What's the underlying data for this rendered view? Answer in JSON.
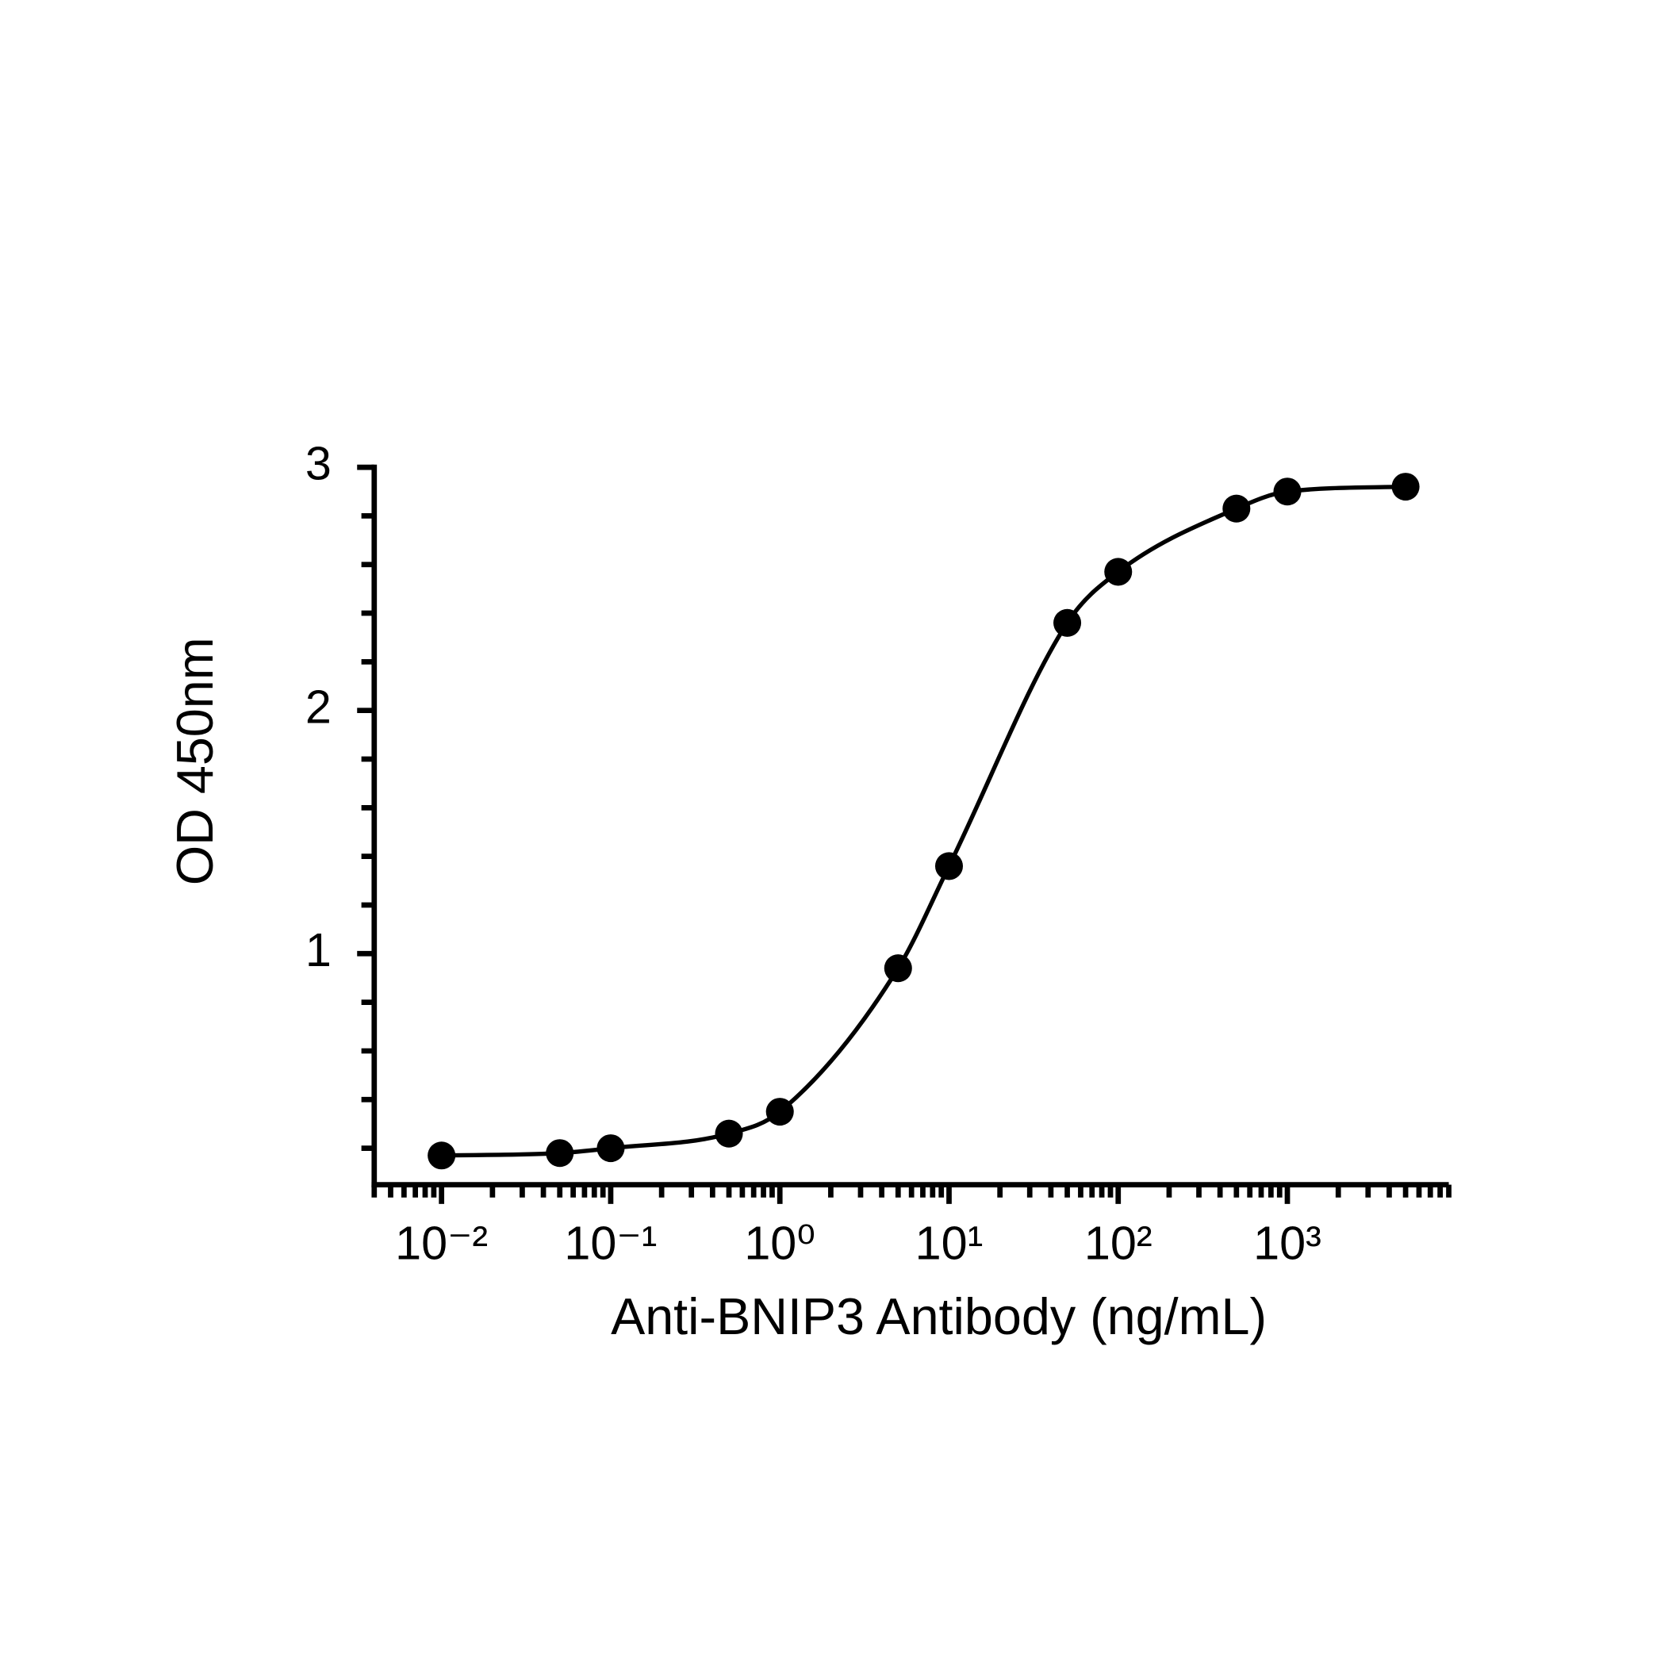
{
  "chart_data": {
    "type": "scatter",
    "x_label": "Anti-BNIP3 Antibody (ng/mL)",
    "y_label": "OD 450nm",
    "x": [
      0.01,
      0.05,
      0.1,
      0.5,
      1,
      5,
      10,
      50,
      100,
      500,
      1000,
      5000
    ],
    "series": [
      {
        "color": "#000000",
        "values": [
          0.17,
          0.18,
          0.2,
          0.26,
          0.35,
          0.94,
          1.36,
          2.36,
          2.57,
          2.83,
          2.9,
          2.92
        ]
      }
    ],
    "xscale": "log",
    "xlim": [
      0.004,
      9000
    ],
    "ylim": [
      0.05,
      3
    ],
    "xticks": [
      {
        "value": 0.01,
        "label": "10⁻²"
      },
      {
        "value": 0.1,
        "label": "10⁻¹"
      },
      {
        "value": 1,
        "label": "10⁰"
      },
      {
        "value": 10,
        "label": "10¹"
      },
      {
        "value": 100,
        "label": "10²"
      },
      {
        "value": 1000,
        "label": "10³"
      }
    ],
    "yticks": [
      1,
      2,
      3
    ],
    "yminorticks": [
      0.2,
      0.4,
      0.6,
      0.8,
      1.2,
      1.4,
      1.6,
      1.8,
      2.2,
      2.4,
      2.6,
      2.8
    ],
    "fit_curve": true,
    "grid": false
  }
}
